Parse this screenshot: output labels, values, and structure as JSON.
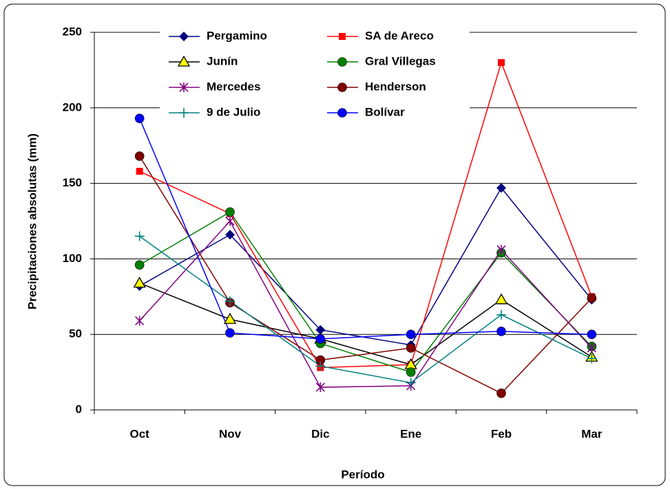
{
  "chart_data": {
    "type": "line",
    "y_label": "Precipitaciones absolutas (mm)",
    "x_label": "Período",
    "categories": [
      "Oct",
      "Nov",
      "Dic",
      "Ene",
      "Feb",
      "Mar"
    ],
    "ylim": [
      0,
      250
    ],
    "yticks": [
      0,
      50,
      100,
      150,
      200,
      250
    ],
    "grid": true,
    "series": [
      {
        "name": "Pergamino",
        "color": "#000080",
        "marker": "diamond",
        "values": [
          82,
          116,
          53,
          43,
          147,
          73
        ]
      },
      {
        "name": "SA de Areco",
        "color": "#ff0000",
        "marker": "square",
        "values": [
          158,
          130,
          28,
          30,
          230,
          75
        ]
      },
      {
        "name": "Junín",
        "color": "#000000",
        "marker": "triangle",
        "values": [
          84,
          60,
          47,
          30,
          73,
          35
        ]
      },
      {
        "name": "Gral Villegas",
        "color": "#008000",
        "marker": "circle",
        "values": [
          96,
          131,
          44,
          25,
          104,
          42
        ]
      },
      {
        "name": "Mercedes",
        "color": "#800080",
        "marker": "star",
        "values": [
          59,
          125,
          15,
          16,
          106,
          41
        ]
      },
      {
        "name": "Henderson",
        "color": "#800000",
        "marker": "circle",
        "values": [
          168,
          71,
          33,
          41,
          11,
          74
        ]
      },
      {
        "name": "9 de Julio",
        "color": "#008080",
        "marker": "plus",
        "values": [
          115,
          72,
          29,
          18,
          63,
          34
        ]
      },
      {
        "name": "Bolívar",
        "color": "#0000ff",
        "marker": "circle",
        "values": [
          193,
          51,
          47,
          50,
          52,
          50
        ]
      }
    ]
  }
}
